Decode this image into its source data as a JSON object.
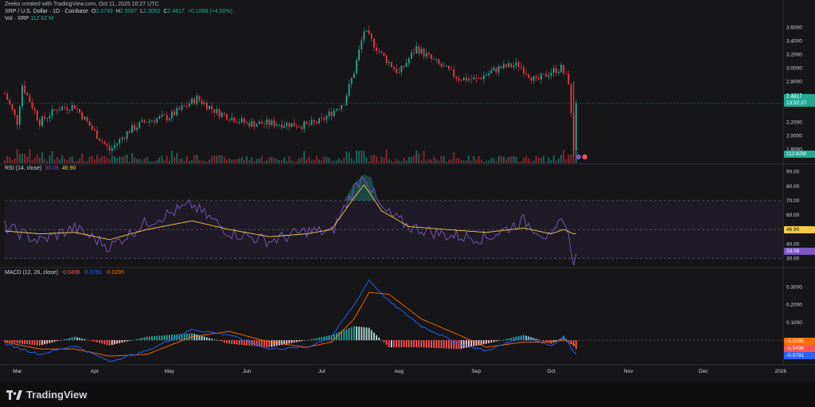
{
  "header": {
    "credit": "Zeeko created with TradingView.com, Oct 11, 2025 10:27 UTC",
    "symbol": "XRP / U.S. Dollar · 1D · Coinbase",
    "o_label": "O",
    "o_value": "2.3749",
    "h_label": "H",
    "h_value": "2.5087",
    "l_label": "L",
    "l_value": "2.3050",
    "c_label": "C",
    "c_value": "2.4817",
    "change": "+0.1068 (+4.50%)",
    "vol_label": "Vol · XRP",
    "vol_value": "112.62 M"
  },
  "price_axis": {
    "ticks": [
      "3.6000",
      "3.4000",
      "3.2000",
      "3.0000",
      "2.8000",
      "2.6000",
      "2.2000",
      "2.0000",
      "1.8000"
    ],
    "last_price": "2.4817",
    "countdown": "13:32:27",
    "volume_label": "112.62M"
  },
  "rsi": {
    "legend_name": "RSI (14, close)",
    "value": "33.08",
    "ma_value": "46.90",
    "ticks": [
      "90.00",
      "80.00",
      "70.00",
      "60.00",
      "50.00",
      "40.00",
      "30.00"
    ],
    "label_rsi": "33.08",
    "label_ma": "46.90"
  },
  "macd": {
    "legend_name": "MACD (12, 26, close)",
    "hist_value": "-0.0496",
    "macd_value": "-0.0791",
    "signal_value": "-0.0295",
    "ticks": [
      "0.3000",
      "0.2000",
      "0.1000"
    ],
    "labels": [
      "-0.0295",
      "-0.0496",
      "-0.0791"
    ]
  },
  "time_axis": [
    "Mar",
    "Apr",
    "May",
    "Jun",
    "Jul",
    "Aug",
    "Sep",
    "Oct",
    "Nov",
    "Dec",
    "2026"
  ],
  "footer": {
    "brand": "TradingView"
  },
  "colors": {
    "up": "#22ab94",
    "down": "#f23645",
    "rsi": "#7e57c2",
    "rsi_ma": "#f7c948",
    "macd": "#2962ff",
    "signal": "#ff6d00",
    "hist_up_strong": "#26a69a",
    "hist_up_weak": "#b2dfdb",
    "hist_down_strong": "#ff5252",
    "hist_down_weak": "#ffcdd2"
  },
  "chart_data": [
    {
      "type": "candlestick",
      "title": "XRP / U.S. Dollar · 1D · Coinbase",
      "x": [
        "2025-02-24",
        "2025-03-01",
        "2025-03-03",
        "2025-03-10",
        "2025-03-17",
        "2025-03-24",
        "2025-04-01",
        "2025-04-07",
        "2025-04-15",
        "2025-04-22",
        "2025-05-01",
        "2025-05-12",
        "2025-05-20",
        "2025-06-01",
        "2025-06-15",
        "2025-06-25",
        "2025-07-01",
        "2025-07-10",
        "2025-07-14",
        "2025-07-18",
        "2025-07-25",
        "2025-08-01",
        "2025-08-08",
        "2025-08-15",
        "2025-08-25",
        "2025-09-01",
        "2025-09-10",
        "2025-09-18",
        "2025-09-25",
        "2025-10-01",
        "2025-10-05",
        "2025-10-08",
        "2025-10-10",
        "2025-10-11"
      ],
      "close": [
        2.62,
        2.2,
        2.75,
        2.2,
        2.4,
        2.44,
        2.05,
        1.78,
        2.08,
        2.22,
        2.28,
        2.55,
        2.35,
        2.18,
        2.18,
        2.15,
        2.22,
        2.5,
        2.95,
        3.55,
        3.2,
        2.92,
        3.3,
        3.1,
        2.85,
        2.83,
        3.0,
        3.05,
        2.8,
        2.95,
        3.0,
        2.8,
        1.8,
        2.4817
      ],
      "ylim": [
        1.65,
        3.7
      ],
      "last_price": 2.4817
    },
    {
      "type": "bar",
      "title": "Vol · XRP",
      "last_volume": "112.62M"
    },
    {
      "type": "line",
      "title": "RSI (14, close)",
      "x": [
        "2025-02-24",
        "2025-03-10",
        "2025-03-24",
        "2025-04-07",
        "2025-04-22",
        "2025-05-10",
        "2025-05-25",
        "2025-06-10",
        "2025-06-25",
        "2025-07-05",
        "2025-07-14",
        "2025-07-18",
        "2025-07-25",
        "2025-08-05",
        "2025-08-20",
        "2025-09-05",
        "2025-09-20",
        "2025-10-01",
        "2025-10-06",
        "2025-10-10",
        "2025-10-11"
      ],
      "series": [
        {
          "name": "RSI",
          "values": [
            52,
            42,
            51,
            38,
            55,
            67,
            48,
            42,
            49,
            48,
            78,
            88,
            64,
            52,
            46,
            44,
            56,
            43,
            59,
            29,
            33.08
          ]
        },
        {
          "name": "RSI MA",
          "values": [
            49,
            47,
            48,
            43,
            50,
            56,
            50,
            45,
            47,
            50,
            72,
            81,
            63,
            52,
            50,
            48,
            51,
            47,
            50,
            47,
            46.9
          ]
        }
      ],
      "ylim": [
        28,
        92
      ],
      "bands": [
        30,
        50,
        70
      ]
    },
    {
      "type": "line",
      "title": "MACD (12, 26, close)",
      "x": [
        "2025-02-24",
        "2025-03-10",
        "2025-03-24",
        "2025-04-07",
        "2025-04-22",
        "2025-05-10",
        "2025-05-25",
        "2025-06-10",
        "2025-06-25",
        "2025-07-05",
        "2025-07-14",
        "2025-07-20",
        "2025-07-28",
        "2025-08-10",
        "2025-08-25",
        "2025-09-05",
        "2025-09-20",
        "2025-10-01",
        "2025-10-06",
        "2025-10-11"
      ],
      "series": [
        {
          "name": "MACD",
          "values": [
            -0.02,
            -0.08,
            -0.03,
            -0.12,
            -0.06,
            0.06,
            0.03,
            -0.05,
            -0.04,
            0.02,
            0.2,
            0.34,
            0.22,
            0.08,
            -0.02,
            -0.06,
            0.02,
            -0.03,
            0.02,
            -0.0791
          ]
        },
        {
          "name": "Signal",
          "values": [
            -0.01,
            -0.05,
            -0.05,
            -0.09,
            -0.08,
            0.02,
            0.05,
            -0.01,
            -0.04,
            -0.01,
            0.12,
            0.27,
            0.26,
            0.12,
            0.03,
            -0.04,
            -0.01,
            -0.01,
            0.0,
            -0.0295
          ]
        },
        {
          "name": "Histogram",
          "values": [
            -0.01,
            -0.03,
            0.02,
            -0.03,
            0.02,
            0.04,
            -0.02,
            -0.04,
            0.0,
            0.03,
            0.08,
            0.07,
            -0.04,
            -0.04,
            -0.05,
            -0.02,
            0.03,
            -0.02,
            0.02,
            -0.0496
          ]
        }
      ],
      "ylim": [
        -0.13,
        0.37
      ]
    }
  ]
}
